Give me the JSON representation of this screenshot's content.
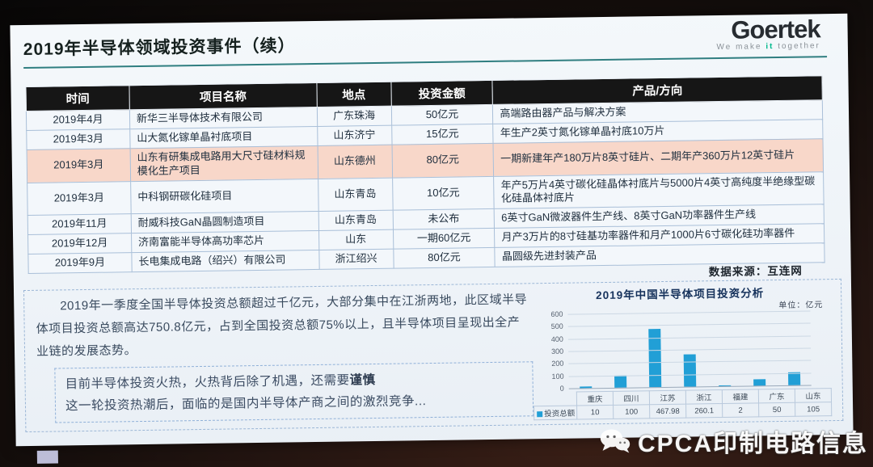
{
  "slide": {
    "title": "2019年半导体领域投资事件（续）",
    "logo": {
      "name": "Goertek",
      "tagline_pre": "We make ",
      "tagline_it": "it",
      "tagline_post": " together"
    },
    "table": {
      "headers": [
        "时间",
        "项目名称",
        "地点",
        "投资金额",
        "产品/方向"
      ],
      "rows": [
        {
          "time": "2019年4月",
          "project": "新华三半导体技术有限公司",
          "location": "广东珠海",
          "amount": "50亿元",
          "product": "高端路由器产品与解决方案",
          "highlight": false
        },
        {
          "time": "2019年3月",
          "project": "山大氮化镓单晶衬底项目",
          "location": "山东济宁",
          "amount": "15亿元",
          "product": "年生产2英寸氮化镓单晶衬底10万片",
          "highlight": false
        },
        {
          "time": "2019年3月",
          "project": "山东有研集成电路用大尺寸硅材料规模化生产项目",
          "location": "山东德州",
          "amount": "80亿元",
          "product": "一期新建年产180万片8英寸硅片、二期年产360万片12英寸硅片",
          "highlight": true
        },
        {
          "time": "2019年3月",
          "project": "中科钢研碳化硅项目",
          "location": "山东青岛",
          "amount": "10亿元",
          "product": "年产5万片4英寸碳化硅晶体衬底片与5000片4英寸高纯度半绝缘型碳化硅晶体衬底片",
          "highlight": false
        },
        {
          "time": "2019年11月",
          "project": "耐威科技GaN晶圆制造项目",
          "location": "山东青岛",
          "amount": "未公布",
          "product": "6英寸GaN微波器件生产线、8英寸GaN功率器件生产线",
          "highlight": false
        },
        {
          "time": "2019年12月",
          "project": "济南富能半导体高功率芯片",
          "location": "山东",
          "amount": "一期60亿元",
          "product": "月产3万片的8寸硅基功率器件和月产1000片6寸碳化硅功率器件",
          "highlight": false
        },
        {
          "time": "2019年9月",
          "project": "长电集成电路（绍兴）有限公司",
          "location": "浙江绍兴",
          "amount": "80亿元",
          "product": "晶圆级先进封装产品",
          "highlight": false
        }
      ]
    },
    "source_note": "数据来源：互连网",
    "summary": {
      "para1": "2019年一季度全国半导体投资总额超过千亿元，大部分集中在江浙两地，此区域半导体项目投资总额高达750.8亿元，占到全国投资总额75%以上，且半导体项目呈现出全产业链的发展态势。",
      "note_line1_pre": "目前半导体投资火热，火热背后除了机遇，还需要",
      "note_line1_bold": "谨慎",
      "note_line2": "这一轮投资热潮后，面临的是国内半导体产商之间的激烈竞争..."
    }
  },
  "chart_data": {
    "type": "bar",
    "title": "2019年中国半导体项目投资分析",
    "unit_label": "单位：亿元",
    "categories": [
      "重庆",
      "四川",
      "江苏",
      "浙江",
      "福建",
      "广东",
      "山东"
    ],
    "series": [
      {
        "name": "投资总额",
        "values": [
          10,
          100,
          467.98,
          260.1,
          2,
          50,
          105
        ]
      }
    ],
    "ylim": [
      0,
      600
    ],
    "yticks": [
      600,
      500,
      400,
      300,
      200,
      100,
      0
    ],
    "grid": true,
    "bar_color": "#219fd6",
    "legend_position": "bottom-left"
  },
  "watermark": {
    "text": "CPCA印制电路信息",
    "icon": "wechat-icon"
  }
}
